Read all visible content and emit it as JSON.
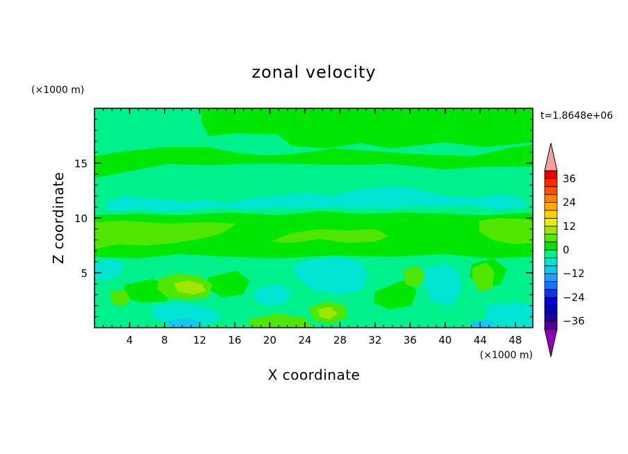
{
  "chart_data": {
    "type": "heatmap",
    "title": "zonal velocity",
    "xlabel": "X coordinate",
    "ylabel": "Z coordinate",
    "x_unit": "(×1000 m)",
    "y_unit": "(×1000 m)",
    "time_label": "t=1.8648e+06",
    "xlim": [
      0,
      50
    ],
    "ylim": [
      0,
      20
    ],
    "x_ticks": [
      4,
      8,
      12,
      16,
      20,
      24,
      28,
      32,
      36,
      40,
      44,
      48
    ],
    "y_ticks": [
      5,
      10,
      15
    ],
    "colorbar": {
      "levels": [
        -40,
        -36,
        -32,
        -28,
        -24,
        -20,
        -16,
        -12,
        -8,
        -4,
        0,
        4,
        8,
        12,
        16,
        20,
        24,
        28,
        32,
        36,
        40
      ],
      "colors": [
        "#4b0096",
        "#1e0096",
        "#0000b4",
        "#0000dc",
        "#0a32f0",
        "#1e6eff",
        "#1ea0ff",
        "#14c8f0",
        "#00e6d2",
        "#00f08c",
        "#00e600",
        "#50e600",
        "#a0e600",
        "#e6f000",
        "#ffd200",
        "#ffaa00",
        "#ff8200",
        "#ff5000",
        "#ff2800",
        "#e60000"
      ],
      "tick_labels": [
        "36",
        "24",
        "12",
        "0",
        "−12",
        "−24",
        "−36"
      ],
      "tick_values": [
        36,
        24,
        12,
        0,
        -12,
        -24,
        -36
      ],
      "over_color": "#f5a0a0",
      "under_color": "#8c00b4"
    },
    "field_description_bands": [
      {
        "z_range": [
          0,
          1
        ],
        "dominant": "-4 to 4 with 4 to 8 patches"
      },
      {
        "z_range": [
          1,
          8
        ],
        "dominant": "-8 to 4 with 4 to 12 blobs"
      },
      {
        "z_range": [
          8,
          10
        ],
        "dominant": "4 to 8"
      },
      {
        "z_range": [
          10,
          13
        ],
        "dominant": "-8 to -4"
      },
      {
        "z_range": [
          13,
          20
        ],
        "dominant": "-4 to 4"
      }
    ]
  }
}
